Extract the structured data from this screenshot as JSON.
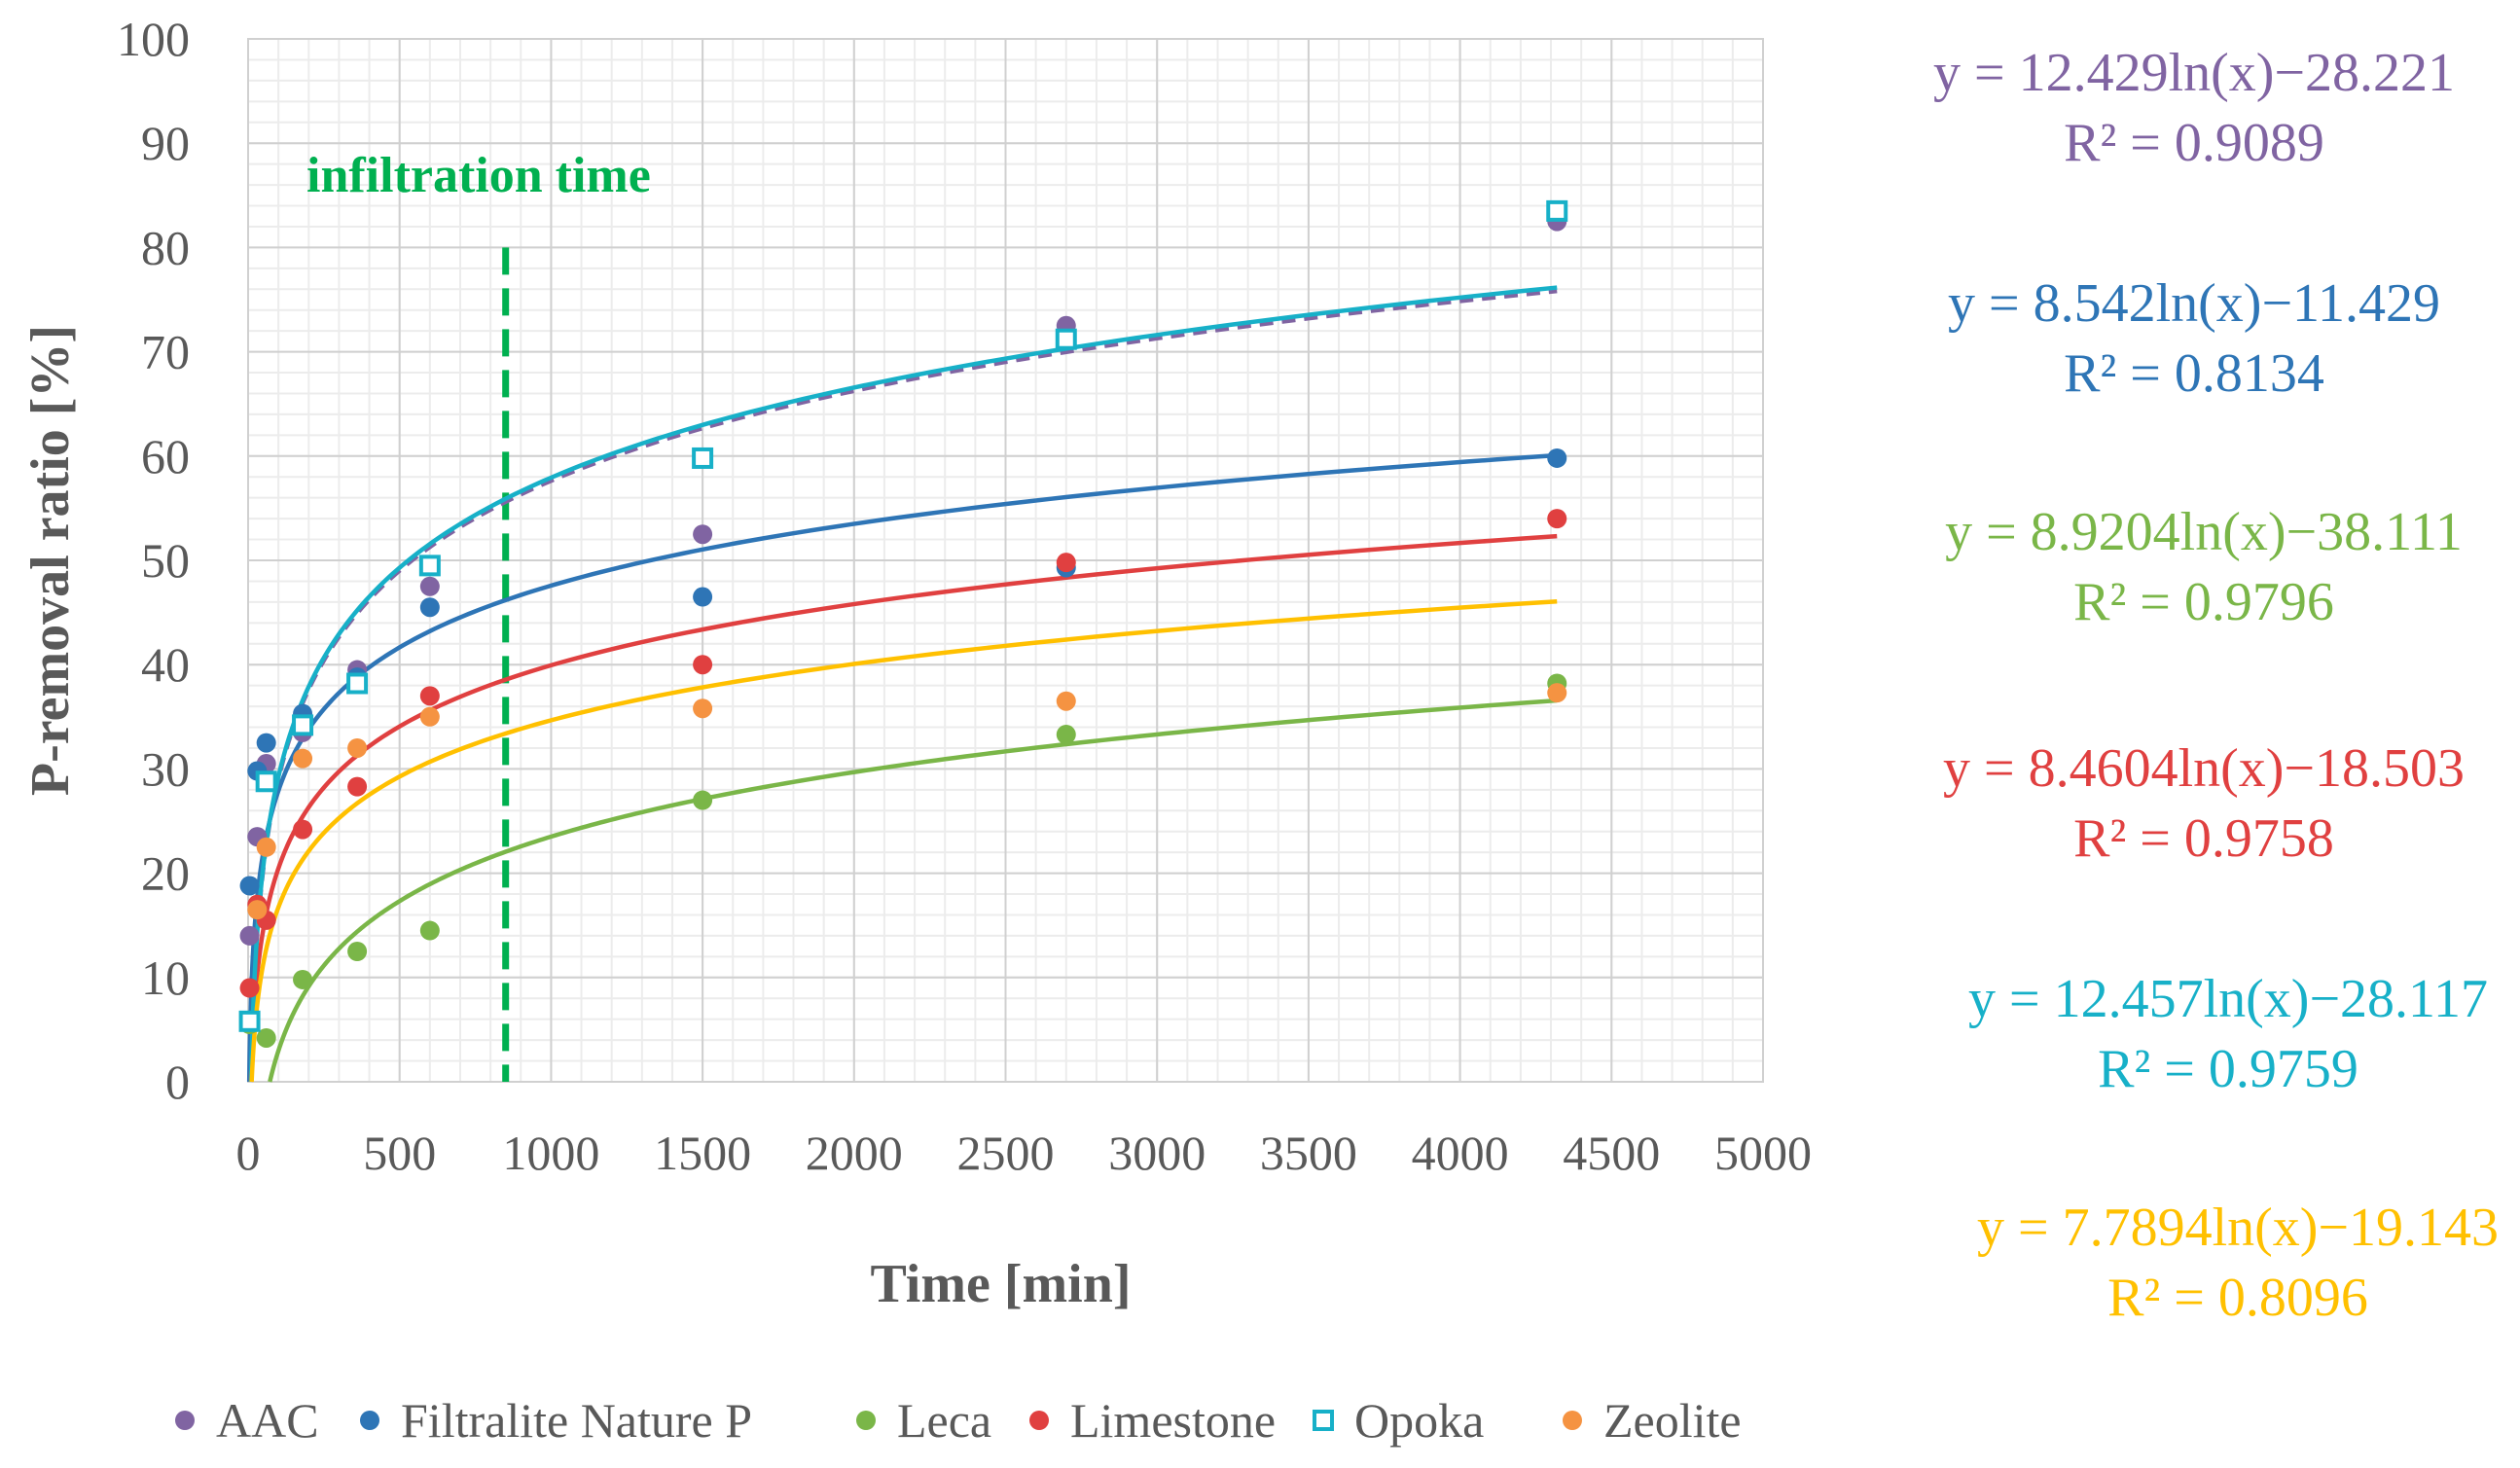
{
  "chart_data": {
    "type": "scatter",
    "title": "",
    "xlabel": "Time [min]",
    "ylabel": "P-removal ratio [%]",
    "xlim": [
      0,
      5000
    ],
    "ylim": [
      0,
      100
    ],
    "x_ticks": [
      0,
      500,
      1000,
      1500,
      2000,
      2500,
      3000,
      3500,
      4000,
      4500,
      5000
    ],
    "y_ticks": [
      0,
      10,
      20,
      30,
      40,
      50,
      60,
      70,
      80,
      90,
      100
    ],
    "grid": true,
    "legend_position": "bottom",
    "annotation": {
      "label": "infiltration time",
      "x": 850,
      "y_range": [
        0,
        80
      ],
      "color": "#00B050"
    },
    "series": [
      {
        "name": "AAC",
        "marker": "filled-circle",
        "color": "#8064A2",
        "x": [
          5,
          30,
          60,
          180,
          360,
          600,
          1500,
          2700,
          4320
        ],
        "y": [
          14,
          23.5,
          30.5,
          33.5,
          39.5,
          47.5,
          52.5,
          72.5,
          82.5
        ],
        "trend": {
          "a": 12.429,
          "b": -28.221,
          "style": "dashed"
        },
        "equation": "y = 12.429ln(x)−28.221",
        "r2_label": "R² = 0.9089"
      },
      {
        "name": "Filtralite Nature P",
        "marker": "filled-circle",
        "color": "#2E75B6",
        "x": [
          5,
          30,
          60,
          180,
          360,
          600,
          1500,
          2700,
          4320
        ],
        "y": [
          18.8,
          29.8,
          32.5,
          35.3,
          38.8,
          45.5,
          46.5,
          49.3,
          59.8
        ],
        "trend": {
          "a": 8.542,
          "b": -11.429,
          "style": "solid"
        },
        "equation": "y = 8.542ln(x)−11.429",
        "r2_label": "R² = 0.8134"
      },
      {
        "name": "Leca",
        "marker": "filled-circle",
        "color": "#7AB648",
        "x": [
          5,
          60,
          180,
          360,
          600,
          1500,
          2700,
          4320
        ],
        "y": [
          5.5,
          4.2,
          9.8,
          12.5,
          14.5,
          27,
          33.3,
          38.2
        ],
        "trend": {
          "a": 8.9204,
          "b": -38.111,
          "style": "solid"
        },
        "equation": "y = 8.9204ln(x)−38.111",
        "r2_label": "R² = 0.9796"
      },
      {
        "name": "Limestone",
        "marker": "filled-circle",
        "color": "#E04040",
        "x": [
          5,
          30,
          60,
          180,
          360,
          600,
          1500,
          2700,
          4320
        ],
        "y": [
          9,
          17,
          15.5,
          24.2,
          28.3,
          37,
          40,
          49.8,
          54
        ],
        "trend": {
          "a": 8.4604,
          "b": -18.503,
          "style": "solid"
        },
        "equation": "y = 8.4604ln(x)−18.503",
        "r2_label": "R² = 0.9758"
      },
      {
        "name": "Opoka",
        "marker": "open-square",
        "color": "#17B0C8",
        "x": [
          5,
          60,
          180,
          360,
          600,
          1500,
          2700,
          4320
        ],
        "y": [
          5.8,
          28.8,
          34.2,
          38.2,
          49.5,
          59.8,
          71.2,
          83.5
        ],
        "trend": {
          "a": 12.457,
          "b": -28.117,
          "style": "solid"
        },
        "equation": "y = 12.457ln(x)−28.117",
        "r2_label": "R² = 0.9759"
      },
      {
        "name": "Zeolite",
        "marker": "filled-circle",
        "color": "#F59342",
        "x": [
          30,
          60,
          180,
          360,
          600,
          1500,
          2700,
          4320
        ],
        "y": [
          16.5,
          22.5,
          31,
          32,
          35,
          35.8,
          36.5,
          37.3
        ],
        "trend": {
          "a": 7.7894,
          "b": -19.143,
          "style": "solid",
          "color": "#FFC000"
        },
        "equation": "y = 7.7894ln(x)−19.143",
        "r2_label": "R² = 0.8096",
        "equation_color": "#FFC000"
      }
    ]
  }
}
